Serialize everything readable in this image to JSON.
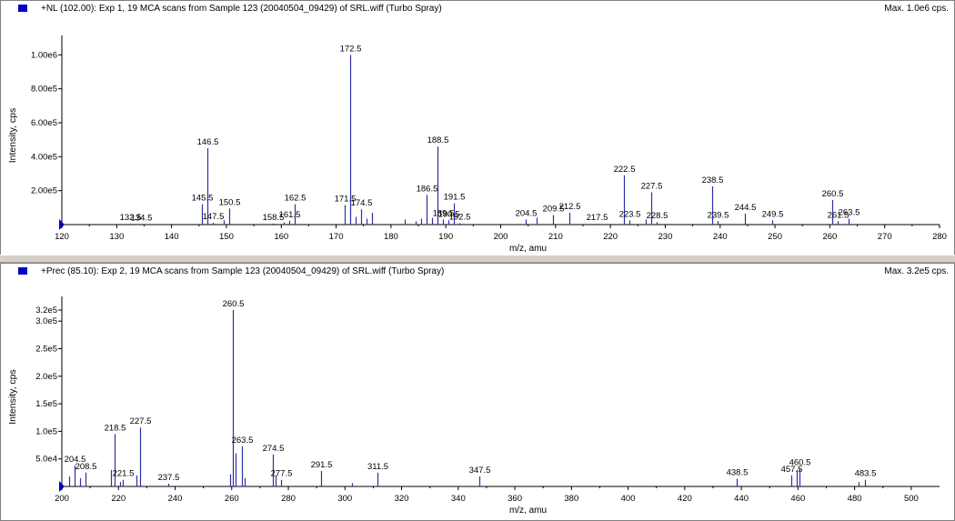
{
  "panes": [
    {
      "title": "+NL (102.00): Exp 1, 19 MCA scans from Sample 123 (20040504_09429) of SRL.wiff (Turbo Spray)",
      "max_label": "Max. 1.0e6 cps."
    },
    {
      "title": "+Prec (85.10): Exp 2, 19 MCA scans from Sample 123 (20040504_09429) of SRL.wiff (Turbo Spray)",
      "max_label": "Max. 3.2e5 cps."
    }
  ],
  "colors": {
    "trace": "#2f2fa8",
    "axis": "#000000",
    "marker": "#0000c8",
    "frame_bg": "#d4d0c8"
  },
  "chart_data": [
    {
      "type": "bar",
      "title": "+NL (102.00): Exp 1, 19 MCA scans from Sample 123 (20040504_09429) of SRL.wiff (Turbo Spray)",
      "xlabel": "m/z, amu",
      "ylabel": "Intensity, cps",
      "xlim": [
        120,
        280
      ],
      "ylim": [
        0,
        1050000
      ],
      "xticks": [
        120,
        130,
        140,
        150,
        160,
        170,
        180,
        190,
        200,
        210,
        220,
        230,
        240,
        250,
        260,
        270,
        280
      ],
      "yticks": [
        200000,
        400000,
        600000,
        800000,
        1000000
      ],
      "ytick_labels": [
        "2.00e5",
        "4.00e5",
        "6.00e5",
        "8.00e5",
        "1.00e6"
      ],
      "peaks": [
        {
          "x": 132.5,
          "y": 5000,
          "label": "132.5"
        },
        {
          "x": 134.5,
          "y": 4000,
          "label": "134.5"
        },
        {
          "x": 145.5,
          "y": 120000,
          "label": "145.5"
        },
        {
          "x": 146.5,
          "y": 450000,
          "label": "146.5"
        },
        {
          "x": 147.5,
          "y": 10000,
          "label": "147.5"
        },
        {
          "x": 149.5,
          "y": 25000
        },
        {
          "x": 150.5,
          "y": 95000,
          "label": "150.5"
        },
        {
          "x": 158.5,
          "y": 6000,
          "label": "158.5"
        },
        {
          "x": 160.5,
          "y": 12000
        },
        {
          "x": 161.5,
          "y": 22000,
          "label": "161.5"
        },
        {
          "x": 162.5,
          "y": 120000,
          "label": "162.5"
        },
        {
          "x": 171.5,
          "y": 115000,
          "label": "171.5"
        },
        {
          "x": 172.5,
          "y": 1000000,
          "label": "172.5"
        },
        {
          "x": 173.5,
          "y": 45000
        },
        {
          "x": 174.5,
          "y": 90000,
          "label": "174.5"
        },
        {
          "x": 175.5,
          "y": 35000
        },
        {
          "x": 176.5,
          "y": 70000
        },
        {
          "x": 182.5,
          "y": 30000
        },
        {
          "x": 184.5,
          "y": 20000
        },
        {
          "x": 185.5,
          "y": 35000
        },
        {
          "x": 186.5,
          "y": 175000,
          "label": "186.5"
        },
        {
          "x": 187.5,
          "y": 40000
        },
        {
          "x": 188.5,
          "y": 460000,
          "label": "188.5"
        },
        {
          "x": 189.5,
          "y": 30000,
          "label": "189.5"
        },
        {
          "x": 190.5,
          "y": 25000,
          "label": "190.5"
        },
        {
          "x": 191.5,
          "y": 125000,
          "label": "191.5"
        },
        {
          "x": 192.5,
          "y": 8000,
          "label": "192.5"
        },
        {
          "x": 204.5,
          "y": 30000,
          "label": "204.5"
        },
        {
          "x": 206.5,
          "y": 40000
        },
        {
          "x": 209.5,
          "y": 55000,
          "label": "209.5"
        },
        {
          "x": 212.5,
          "y": 70000,
          "label": "212.5"
        },
        {
          "x": 217.5,
          "y": 5000,
          "label": "217.5"
        },
        {
          "x": 222.5,
          "y": 290000,
          "label": "222.5"
        },
        {
          "x": 223.5,
          "y": 25000,
          "label": "223.5"
        },
        {
          "x": 226.5,
          "y": 30000
        },
        {
          "x": 227.5,
          "y": 190000,
          "label": "227.5"
        },
        {
          "x": 228.5,
          "y": 15000,
          "label": "228.5"
        },
        {
          "x": 238.5,
          "y": 225000,
          "label": "238.5"
        },
        {
          "x": 239.5,
          "y": 20000,
          "label": "239.5"
        },
        {
          "x": 244.5,
          "y": 65000,
          "label": "244.5"
        },
        {
          "x": 249.5,
          "y": 25000,
          "label": "249.5"
        },
        {
          "x": 260.5,
          "y": 145000,
          "label": "260.5"
        },
        {
          "x": 261.5,
          "y": 20000,
          "label": "261.5"
        },
        {
          "x": 263.5,
          "y": 35000,
          "label": "263.5"
        }
      ]
    },
    {
      "type": "bar",
      "title": "+Prec (85.10): Exp 2, 19 MCA scans from Sample 123 (20040504_09429) of SRL.wiff (Turbo Spray)",
      "xlabel": "m/z, amu",
      "ylabel": "Intensity, cps",
      "xlim": [
        200,
        510
      ],
      "ylim": [
        0,
        325000
      ],
      "xticks": [
        200,
        220,
        240,
        260,
        280,
        300,
        320,
        340,
        360,
        380,
        400,
        420,
        440,
        460,
        480,
        500
      ],
      "yticks": [
        50000,
        100000,
        150000,
        200000,
        250000,
        300000,
        320000
      ],
      "ytick_labels": [
        "5.0e4",
        "1.0e5",
        "1.5e5",
        "2.0e5",
        "2.5e5",
        "3.0e5",
        "3.2e5"
      ],
      "peaks": [
        {
          "x": 202.5,
          "y": 18000
        },
        {
          "x": 204.5,
          "y": 38000,
          "label": "204.5"
        },
        {
          "x": 206.5,
          "y": 15000
        },
        {
          "x": 208.5,
          "y": 25000,
          "label": "208.5"
        },
        {
          "x": 217.5,
          "y": 30000
        },
        {
          "x": 218.5,
          "y": 95000,
          "label": "218.5"
        },
        {
          "x": 220.5,
          "y": 8000
        },
        {
          "x": 221.5,
          "y": 12000,
          "label": "221.5"
        },
        {
          "x": 226.5,
          "y": 20000
        },
        {
          "x": 227.5,
          "y": 107000,
          "label": "227.5"
        },
        {
          "x": 237.5,
          "y": 5000,
          "label": "237.5"
        },
        {
          "x": 259.5,
          "y": 22000
        },
        {
          "x": 260.5,
          "y": 320000,
          "label": "260.5"
        },
        {
          "x": 261.5,
          "y": 60000
        },
        {
          "x": 263.5,
          "y": 73000,
          "label": "263.5"
        },
        {
          "x": 264.5,
          "y": 15000
        },
        {
          "x": 274.5,
          "y": 58000,
          "label": "274.5"
        },
        {
          "x": 275.5,
          "y": 20000
        },
        {
          "x": 277.5,
          "y": 12000,
          "label": "277.5"
        },
        {
          "x": 291.5,
          "y": 28000,
          "label": "291.5"
        },
        {
          "x": 302.5,
          "y": 6000
        },
        {
          "x": 311.5,
          "y": 25000,
          "label": "311.5"
        },
        {
          "x": 347.5,
          "y": 18000,
          "label": "347.5"
        },
        {
          "x": 438.5,
          "y": 14000,
          "label": "438.5"
        },
        {
          "x": 457.5,
          "y": 20000,
          "label": "457.5"
        },
        {
          "x": 459.5,
          "y": 30000
        },
        {
          "x": 460.5,
          "y": 32000,
          "label": "460.5"
        },
        {
          "x": 481.5,
          "y": 8000
        },
        {
          "x": 483.5,
          "y": 12000,
          "label": "483.5"
        }
      ]
    }
  ]
}
